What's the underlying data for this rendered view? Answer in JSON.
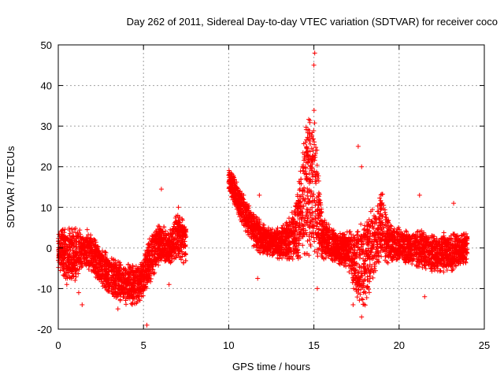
{
  "chart_data": {
    "type": "scatter",
    "title": "Day 262 of 2011, Sidereal Day-to-day VTEC variation (SDTVAR) for receiver coco",
    "xlabel": "GPS time / hours",
    "ylabel": "SDTVAR / TECUs",
    "xlim": [
      0,
      25
    ],
    "ylim": [
      -20,
      50
    ],
    "xticks": [
      0,
      5,
      10,
      15,
      20,
      25
    ],
    "yticks": [
      -20,
      -10,
      0,
      10,
      20,
      30,
      40,
      50
    ],
    "grid": true,
    "marker": "+",
    "series": [
      {
        "name": "SDTVAR",
        "color": "#ff0000",
        "envelope_x": [
          0,
          0.5,
          1,
          1.5,
          2,
          2.5,
          3,
          3.5,
          4,
          4.5,
          5,
          5.5,
          6,
          6.5,
          7,
          7.5,
          10,
          10.5,
          11,
          11.5,
          12,
          12.5,
          13,
          13.5,
          14,
          14.5,
          15,
          15.5,
          16,
          16.5,
          17,
          17.5,
          18,
          18.5,
          19,
          19.5,
          20,
          20.5,
          21,
          21.5,
          22,
          22.5,
          23,
          23.5,
          24
        ],
        "envelope_upper": [
          5,
          5,
          5,
          4,
          3,
          0,
          -2,
          -3,
          -4,
          -4,
          -2,
          4,
          6,
          4,
          9,
          6,
          20,
          16,
          12,
          9,
          6,
          5,
          5,
          7,
          12,
          30,
          35,
          8,
          5,
          4,
          4,
          5,
          7,
          10,
          14,
          6,
          5,
          4,
          5,
          4,
          3,
          4,
          4,
          3,
          4
        ],
        "envelope_lower": [
          -5,
          -8,
          -8,
          -5,
          -6,
          -9,
          -11,
          -13,
          -14,
          -14,
          -13,
          -8,
          -3,
          -4,
          -2,
          -5,
          14,
          9,
          4,
          0,
          -2,
          -2,
          -3,
          -3,
          -3,
          -2,
          -2,
          -3,
          -3,
          -4,
          -5,
          -13,
          -15,
          -8,
          -4,
          -4,
          -3,
          -4,
          -5,
          -5,
          -6,
          -6,
          -6,
          -4,
          -4
        ],
        "spikes": [
          {
            "x": 15.05,
            "y": 48
          },
          {
            "x": 15.0,
            "y": 45
          },
          {
            "x": 17.6,
            "y": 25
          },
          {
            "x": 17.8,
            "y": 20
          },
          {
            "x": 6.05,
            "y": 14.5
          },
          {
            "x": 11.8,
            "y": 13
          },
          {
            "x": 14.6,
            "y": 17
          },
          {
            "x": 14.8,
            "y": 22
          },
          {
            "x": 21.2,
            "y": 13
          },
          {
            "x": 7.05,
            "y": 10
          },
          {
            "x": 23.2,
            "y": 11
          },
          {
            "x": 1.7,
            "y": 4.5
          },
          {
            "x": 11.7,
            "y": -7.5
          },
          {
            "x": 15.2,
            "y": -10
          },
          {
            "x": 17.8,
            "y": -17
          },
          {
            "x": 17.3,
            "y": -14
          },
          {
            "x": 5.2,
            "y": -19
          },
          {
            "x": 3.5,
            "y": -15
          },
          {
            "x": 1.4,
            "y": -14
          },
          {
            "x": 1.2,
            "y": -11
          },
          {
            "x": 6.5,
            "y": -9
          },
          {
            "x": 0.5,
            "y": -9
          },
          {
            "x": 21.5,
            "y": -12
          }
        ]
      }
    ]
  }
}
